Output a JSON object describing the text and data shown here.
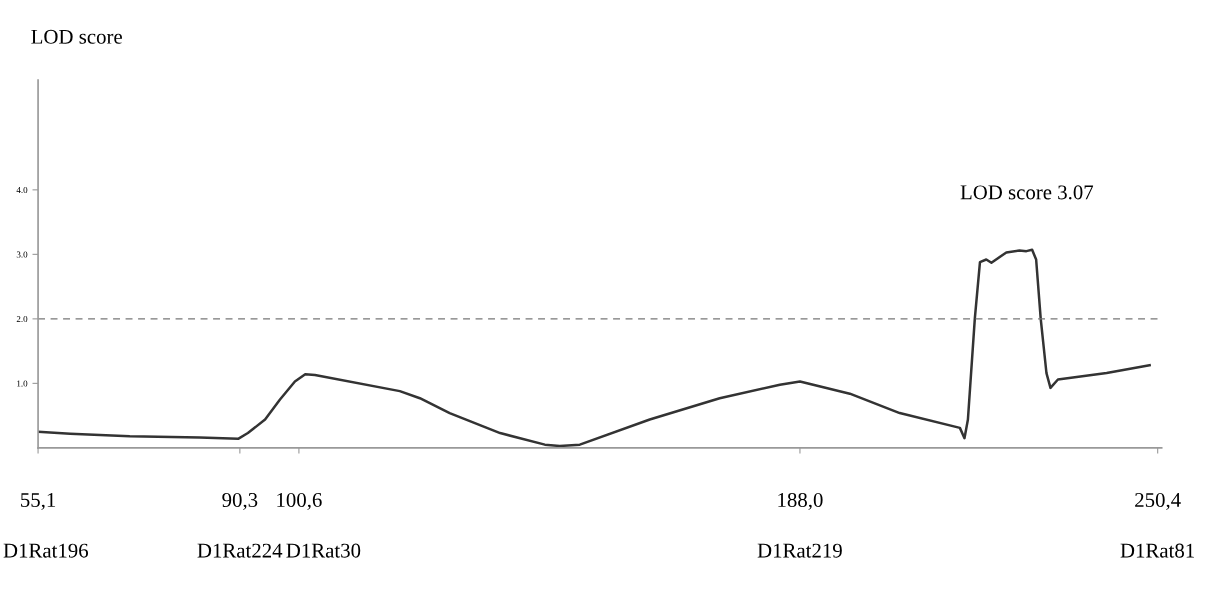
{
  "chart_data": {
    "type": "line",
    "ylabel": "LOD score",
    "x": [
      55.1,
      60.7,
      71.1,
      83.3,
      90.0,
      91.7,
      94.7,
      97.3,
      99.9,
      101.7,
      103.4,
      118.2,
      121.7,
      126.9,
      135.7,
      143.5,
      146.1,
      149.6,
      161.8,
      174.0,
      184.5,
      188.0,
      196.7,
      205.4,
      215.9,
      216.7,
      217.3,
      218.5,
      219.4,
      220.5,
      221.4,
      224.0,
      226.3,
      227.5,
      228.5,
      229.2,
      230.0,
      231.0,
      231.7,
      233.0,
      241.5,
      249.0
    ],
    "series": [
      {
        "color": "#333333",
        "values": [
          0.25,
          0.22,
          0.18,
          0.16,
          0.14,
          0.23,
          0.44,
          0.75,
          1.03,
          1.14,
          1.13,
          0.88,
          0.77,
          0.54,
          0.23,
          0.05,
          0.03,
          0.05,
          0.44,
          0.77,
          0.98,
          1.03,
          0.84,
          0.54,
          0.31,
          0.15,
          0.44,
          2.0,
          2.88,
          2.92,
          2.87,
          3.03,
          3.06,
          3.05,
          3.07,
          2.92,
          2.0,
          1.16,
          0.93,
          1.06,
          1.16,
          1.28
        ]
      }
    ],
    "xlim": [
      55.1,
      251.1
    ],
    "ylim": [
      0,
      5.7
    ],
    "xticks": [
      {
        "value": 55.1,
        "label": "55,1"
      },
      {
        "value": 90.3,
        "label": "90,3"
      },
      {
        "value": 100.6,
        "label": "100,6"
      },
      {
        "value": 188.0,
        "label": "188,0"
      },
      {
        "value": 250.4,
        "label": "250,4"
      }
    ],
    "yticks": [
      {
        "value": 1,
        "label": "1.0"
      },
      {
        "value": 2,
        "label": "2.0"
      },
      {
        "value": 3,
        "label": "3.0"
      },
      {
        "value": 4,
        "label": "4.0"
      }
    ],
    "ref_lines": [
      {
        "axis": "y",
        "value": 2.0,
        "color": "#777777",
        "line_style": "dashed"
      }
    ],
    "annotations": [
      "LOD score 3.07",
      "D1Rat196",
      "D1Rat224",
      "D1Rat30",
      "D1Rat219",
      "D1Rat81"
    ],
    "grid": false,
    "legend": false,
    "marker": "none",
    "line_style": "solid"
  }
}
